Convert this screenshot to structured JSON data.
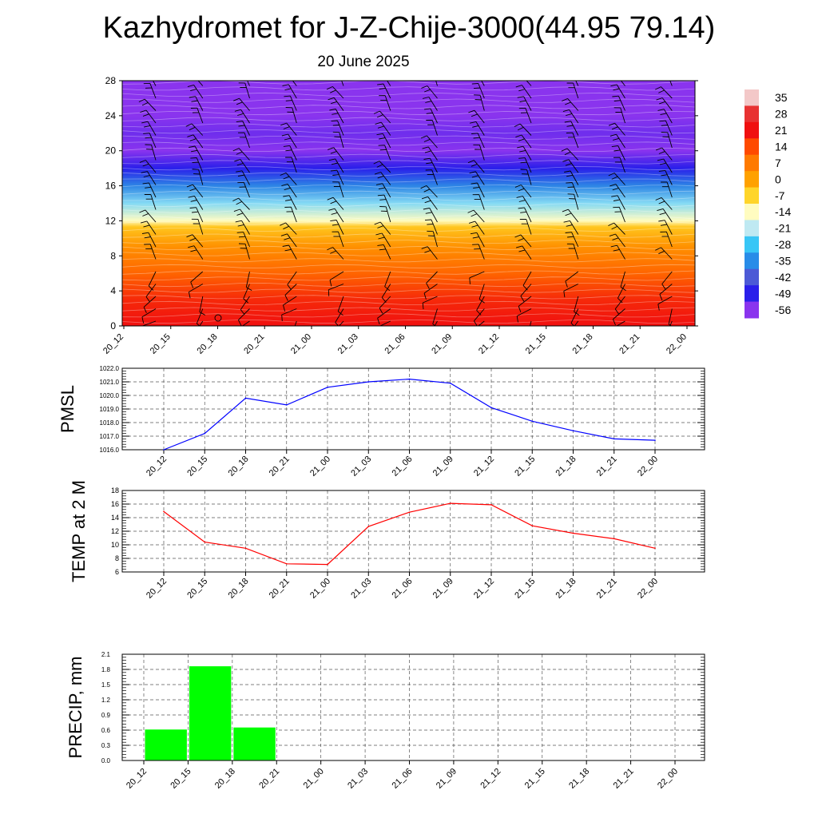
{
  "title": "Kazhydromet for J-Z-Chije-3000(44.95 79.14)",
  "subtitle": "20 June 2025",
  "time_labels": [
    "20_12",
    "20_15",
    "20_18",
    "20_21",
    "21_00",
    "21_03",
    "21_06",
    "21_09",
    "21_12",
    "21_15",
    "21_18",
    "21_21",
    "22_00"
  ],
  "chart_data": [
    {
      "type": "heatmap",
      "title": "",
      "xlabel": "",
      "ylabel": "",
      "x": [
        "20_12",
        "20_15",
        "20_18",
        "20_21",
        "21_00",
        "21_03",
        "21_06",
        "21_09",
        "21_12",
        "21_15",
        "21_18",
        "21_21",
        "22_00"
      ],
      "y_ticks": [
        0,
        4,
        8,
        12,
        16,
        20,
        24,
        28
      ],
      "ylim": [
        0,
        28
      ],
      "temperature_profile": [
        {
          "y": 0,
          "value": 21
        },
        {
          "y": 3,
          "value": 18
        },
        {
          "y": 6,
          "value": 10
        },
        {
          "y": 9,
          "value": 3
        },
        {
          "y": 11.3,
          "value": -5
        },
        {
          "y": 12,
          "value": -14
        },
        {
          "y": 14,
          "value": -24
        },
        {
          "y": 16,
          "value": -36
        },
        {
          "y": 18,
          "value": -49
        },
        {
          "y": 20,
          "value": -58
        },
        {
          "y": 22,
          "value": -54
        },
        {
          "y": 24,
          "value": -64
        },
        {
          "y": 28,
          "value": -64
        }
      ],
      "wind_barbs": "present",
      "colorbar": {
        "labels": [
          "35",
          "28",
          "21",
          "14",
          "7",
          "0",
          "-7",
          "-14",
          "-21",
          "-28",
          "-35",
          "-42",
          "-49",
          "-56"
        ],
        "colors": [
          "#f3c8c8",
          "#e83232",
          "#f01010",
          "#ff4a00",
          "#ff7a00",
          "#ffa100",
          "#ffd52a",
          "#fffcc0",
          "#bfe9f2",
          "#38c6f6",
          "#288ce8",
          "#4c5ad6",
          "#2a1fea",
          "#8a34ee"
        ]
      },
      "grid": false
    },
    {
      "type": "line",
      "title": "",
      "ylabel": "PMSL",
      "xlabel": "",
      "x": [
        "20_12",
        "20_15",
        "20_18",
        "20_21",
        "21_00",
        "21_03",
        "21_06",
        "21_09",
        "21_12",
        "21_15",
        "21_18",
        "21_21",
        "22_00"
      ],
      "series": [
        {
          "values": [
            1016.0,
            1017.2,
            1019.8,
            1019.3,
            1020.6,
            1021.0,
            1021.2,
            1020.9,
            1019.1,
            1018.1,
            1017.4,
            1016.8,
            1016.7
          ],
          "color": "#0000ff"
        }
      ],
      "ylim": [
        1016.0,
        1022.0
      ],
      "y_ticks": [
        "1016.0",
        "1017.0",
        "1018.0",
        "1019.0",
        "1020.0",
        "1021.0",
        "1022.0"
      ],
      "grid": true
    },
    {
      "type": "line",
      "title": "",
      "ylabel": "TEMP at 2 M",
      "xlabel": "",
      "x": [
        "20_12",
        "20_15",
        "20_18",
        "20_21",
        "21_00",
        "21_03",
        "21_06",
        "21_09",
        "21_12",
        "21_15",
        "21_18",
        "21_21",
        "22_00"
      ],
      "series": [
        {
          "values": [
            14.9,
            10.4,
            9.5,
            7.2,
            7.1,
            12.7,
            14.8,
            16.1,
            15.9,
            12.8,
            11.7,
            10.9,
            9.5
          ],
          "color": "#ff0000"
        }
      ],
      "ylim": [
        6,
        18
      ],
      "y_ticks": [
        "6",
        "8",
        "10",
        "12",
        "14",
        "16",
        "18"
      ],
      "grid": true
    },
    {
      "type": "bar",
      "title": "",
      "ylabel": "PRECIP, mm",
      "xlabel": "",
      "categories": [
        "20_12",
        "20_15",
        "20_18",
        "20_21",
        "21_00",
        "21_03",
        "21_06",
        "21_09",
        "21_12",
        "21_15",
        "21_18",
        "21_21",
        "22_00"
      ],
      "values": [
        0,
        0.62,
        1.87,
        0.66,
        0,
        0,
        0,
        0,
        0,
        0,
        0,
        0,
        0
      ],
      "color": "#00ff00",
      "ylim": [
        0,
        2.1
      ],
      "y_ticks": [
        "0.0",
        "0.3",
        "0.6",
        "0.9",
        "1.2",
        "1.5",
        "1.8",
        "2.1"
      ],
      "grid": true
    }
  ]
}
